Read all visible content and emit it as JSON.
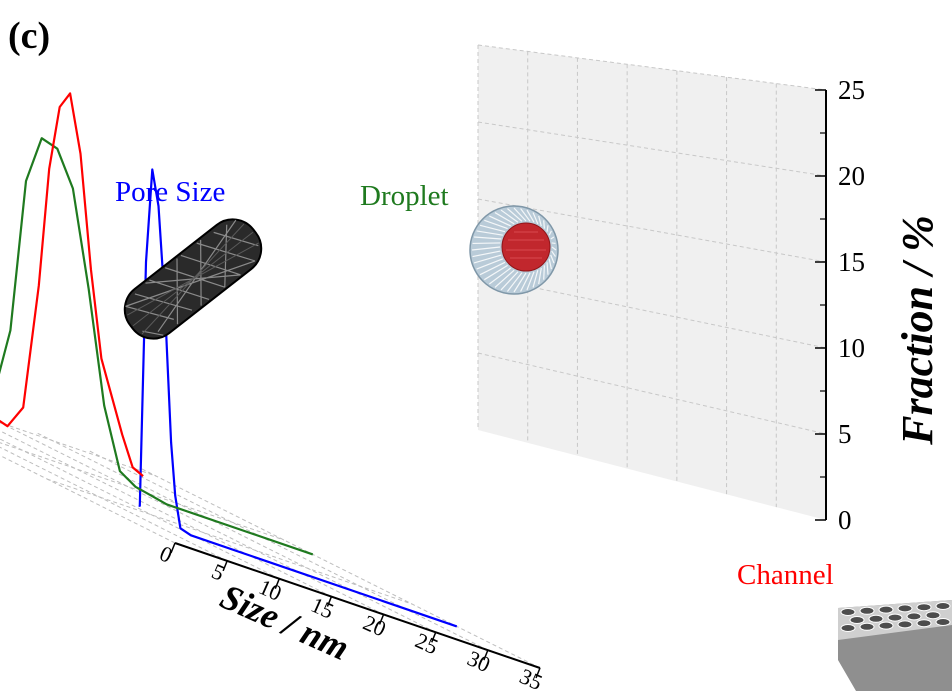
{
  "panel_label": "(c)",
  "chart_data": {
    "type": "line",
    "title": "",
    "xlabel": "Size / nm",
    "ylabel": "Fraction / %",
    "xlim": [
      0,
      35
    ],
    "ylim": [
      0,
      25
    ],
    "x_ticks": [
      0,
      5,
      10,
      15,
      20,
      25,
      30,
      35
    ],
    "x_tick_labels": [
      "0",
      "5",
      "10",
      "15",
      "20",
      "25",
      "30",
      "35"
    ],
    "y_ticks": [
      0,
      5,
      10,
      15,
      20,
      25
    ],
    "y_tick_labels": [
      "0",
      "5",
      "10",
      "15",
      "20",
      "25"
    ],
    "grid": true,
    "series": [
      {
        "name": "Pore Size",
        "color": "#0000ff",
        "x": [
          4.5,
          4.6,
          5.2,
          5.8,
          6.4,
          7.0,
          7.6,
          8.0,
          8.5,
          9.5,
          35
        ],
        "y": [
          0.7,
          0.7,
          15.0,
          20.5,
          18.5,
          13.0,
          5.0,
          2.0,
          0.2,
          0,
          0
        ]
      },
      {
        "name": "Droplet",
        "color": "#1f7a1f",
        "x": [
          1.0,
          3.5,
          6.0,
          7.5,
          9.0,
          10.5,
          12.0,
          13.5,
          15.0,
          16.5,
          18.0,
          19.5,
          21.0,
          35
        ],
        "y": [
          1.3,
          0.7,
          7.0,
          16.0,
          18.8,
          18.5,
          16.5,
          11.0,
          4.5,
          1.0,
          0.4,
          0.2,
          0,
          0
        ]
      },
      {
        "name": "Channel",
        "color": "#ff0000",
        "x": [
          0,
          4,
          8,
          12,
          14,
          16,
          18,
          19.5,
          21,
          22,
          23,
          24,
          25,
          26,
          27,
          28,
          29,
          30,
          31
        ],
        "y": [
          2.0,
          1.8,
          1.5,
          1.2,
          0.6,
          0.6,
          0.2,
          1.6,
          9.0,
          16.0,
          19.8,
          20.8,
          17.5,
          11.0,
          6.0,
          4.0,
          2.0,
          0.3,
          0
        ]
      }
    ]
  }
}
